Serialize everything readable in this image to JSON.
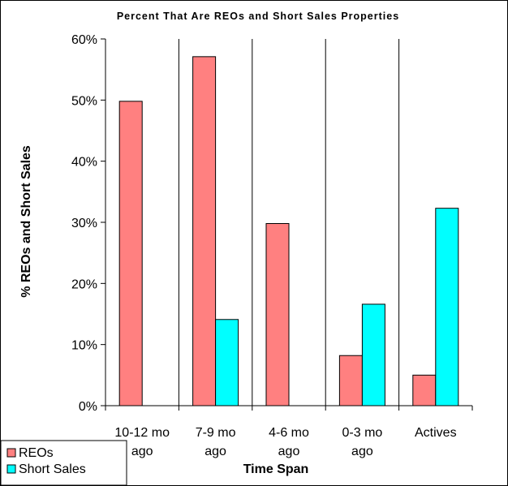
{
  "chart_data": {
    "type": "bar",
    "title": "Percent That Are REOs and Short Sales Properties",
    "xlabel": "Time Span",
    "ylabel": "% REOs and Short Sales",
    "categories": [
      [
        "10-12 mo",
        "ago"
      ],
      [
        "7-9 mo",
        "ago"
      ],
      [
        "4-6 mo",
        "ago"
      ],
      [
        "0-3 mo",
        "ago"
      ],
      [
        "Actives"
      ]
    ],
    "ylim": [
      0,
      60
    ],
    "yticks": [
      "0%",
      "10%",
      "20%",
      "30%",
      "40%",
      "50%",
      "60%"
    ],
    "series": [
      {
        "name": "REOs",
        "color": "#ff8080",
        "values": [
          49.8,
          57.1,
          29.8,
          8.2,
          5.0
        ]
      },
      {
        "name": "Short Sales",
        "color": "#00ffff",
        "values": [
          0,
          14.1,
          0,
          16.6,
          32.3
        ]
      }
    ],
    "grid": false,
    "legend": "bottom-left"
  }
}
